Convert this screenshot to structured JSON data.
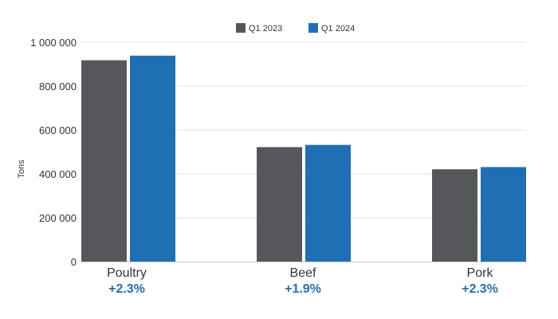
{
  "chart_data": {
    "type": "bar",
    "categories": [
      "Poultry",
      "Beef",
      "Pork"
    ],
    "series": [
      {
        "name": "Q1 2023",
        "color": "#55575b",
        "values": [
          918000,
          522000,
          421000
        ]
      },
      {
        "name": "Q1 2024",
        "color": "#1f6fb5",
        "values": [
          939000,
          532000,
          431000
        ]
      }
    ],
    "changes": [
      "+2.3%",
      "+1.9%",
      "+2.3%"
    ],
    "ylabel": "Tons",
    "xlabel": "",
    "ylim": [
      0,
      1000000
    ],
    "yticks": [
      0,
      200000,
      400000,
      600000,
      800000,
      1000000
    ],
    "ytick_labels": [
      "0",
      "200 000",
      "400 000",
      "600 000",
      "800 000",
      "1 000 000"
    ],
    "grid": true,
    "legend_position": "top-center",
    "change_color": "#1f6fb5"
  }
}
